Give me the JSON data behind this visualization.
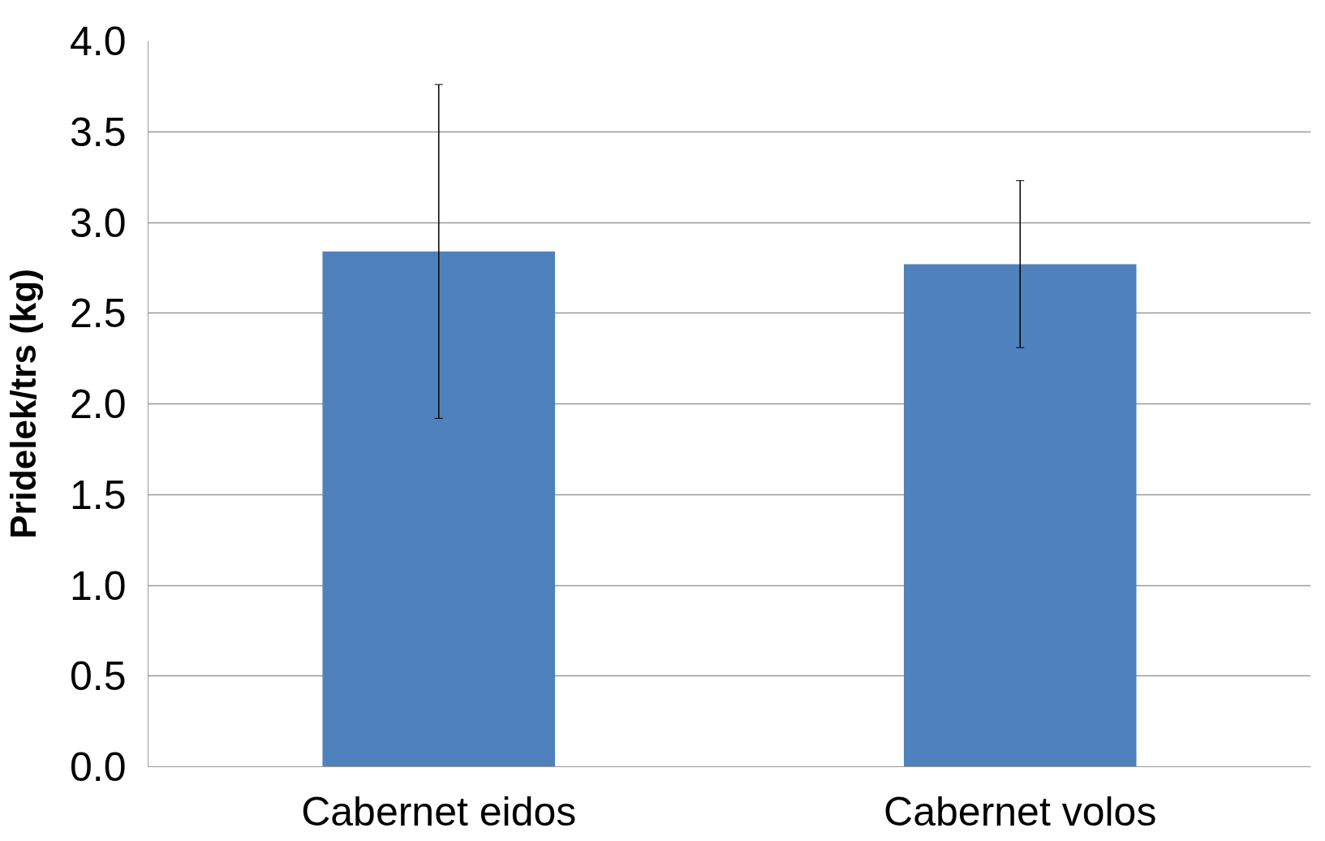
{
  "chart_data": {
    "type": "bar",
    "ylabel": "Pridelek/trs (kg)",
    "categories": [
      "Cabernet eidos",
      "Cabernet volos"
    ],
    "values": [
      2.84,
      2.77
    ],
    "errors": [
      0.92,
      0.46
    ],
    "color": "#4f81bd",
    "ylim": [
      0,
      4.0
    ],
    "yticks": [
      {
        "value": 0,
        "label": "0.0"
      },
      {
        "value": 0.5,
        "label": "0.5"
      },
      {
        "value": 1,
        "label": "1.0"
      },
      {
        "value": 1.5,
        "label": "1.5"
      },
      {
        "value": 2,
        "label": "2.0"
      },
      {
        "value": 2.5,
        "label": "2.5"
      },
      {
        "value": 3,
        "label": "3.0"
      },
      {
        "value": 3.5,
        "label": "3.5"
      },
      {
        "value": 4,
        "label": "4.0"
      }
    ],
    "grid": "y"
  }
}
